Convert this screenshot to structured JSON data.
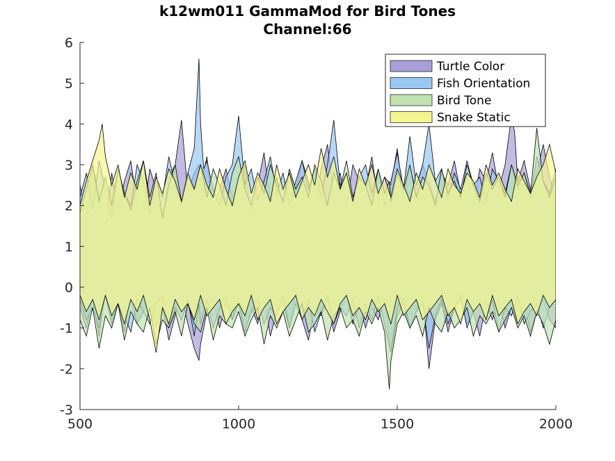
{
  "chart_data": {
    "type": "area",
    "title": "k12wm011 GammaMod for Bird Tones",
    "subtitle": "Channel:66",
    "xlabel": "",
    "ylabel": "",
    "xlim": [
      500,
      2000
    ],
    "ylim": [
      -3,
      6
    ],
    "xticks": [
      "500",
      "1000",
      "1500",
      "2000"
    ],
    "yticks": [
      "-3",
      "-2",
      "-1",
      "0",
      "1",
      "2",
      "3",
      "4",
      "5",
      "6"
    ],
    "grid": false,
    "legend_position": "top-right",
    "series": [
      {
        "name": "Turtle Color",
        "color": "#a89fd8",
        "x": [
          500,
          520,
          540,
          560,
          580,
          600,
          620,
          640,
          660,
          680,
          700,
          720,
          740,
          760,
          780,
          800,
          820,
          840,
          860,
          875,
          880,
          900,
          920,
          940,
          960,
          980,
          1000,
          1020,
          1040,
          1060,
          1080,
          1100,
          1120,
          1140,
          1160,
          1180,
          1200,
          1220,
          1240,
          1260,
          1280,
          1300,
          1320,
          1340,
          1360,
          1380,
          1400,
          1420,
          1440,
          1460,
          1480,
          1500,
          1520,
          1540,
          1560,
          1580,
          1600,
          1620,
          1640,
          1660,
          1680,
          1700,
          1720,
          1740,
          1760,
          1780,
          1800,
          1820,
          1840,
          1860,
          1870,
          1880,
          1900,
          1920,
          1940,
          1960,
          1980,
          2000
        ],
        "upper": [
          2.5,
          1.8,
          3.0,
          2.2,
          1.5,
          2.8,
          1.9,
          2.6,
          3.1,
          2.0,
          1.7,
          2.9,
          2.4,
          1.6,
          2.7,
          3.0,
          4.1,
          2.3,
          2.8,
          3.0,
          2.5,
          3.2,
          1.9,
          2.4,
          2.9,
          2.2,
          2.6,
          3.0,
          1.8,
          2.5,
          3.3,
          2.1,
          2.7,
          2.0,
          2.8,
          2.4,
          3.1,
          2.6,
          1.9,
          2.9,
          3.5,
          2.3,
          2.8,
          2.0,
          3.0,
          2.6,
          2.4,
          3.2,
          2.1,
          2.7,
          2.5,
          3.4,
          2.2,
          2.9,
          2.4,
          3.0,
          2.6,
          2.1,
          2.8,
          2.5,
          3.1,
          2.3,
          2.7,
          2.0,
          2.9,
          2.6,
          3.3,
          2.4,
          3.0,
          4.2,
          3.8,
          2.6,
          3.1,
          2.4,
          2.8,
          3.5,
          2.7,
          2.2
        ],
        "lower": [
          -0.5,
          -1.0,
          -0.3,
          -1.2,
          0.0,
          -0.8,
          -0.4,
          -1.1,
          -0.2,
          -0.9,
          -0.6,
          -0.3,
          -1.0,
          -0.5,
          -1.3,
          -0.7,
          -0.2,
          -0.9,
          -1.5,
          -1.8,
          -1.4,
          -0.6,
          -0.3,
          -1.0,
          -0.4,
          -0.8,
          -0.2,
          -1.1,
          -0.5,
          -0.9,
          -0.3,
          -1.2,
          -0.6,
          -0.4,
          -1.0,
          -0.2,
          -0.8,
          -1.3,
          -0.5,
          -0.7,
          -0.3,
          -1.1,
          -0.6,
          -0.2,
          -0.9,
          -0.4,
          -1.0,
          -0.5,
          -0.8,
          -0.3,
          -1.6,
          -0.7,
          -0.4,
          -1.0,
          -0.6,
          -0.2,
          -2.0,
          -0.8,
          -0.4,
          -1.1,
          -0.5,
          -0.3,
          -0.9,
          -0.6,
          -1.2,
          -0.4,
          -0.8,
          -0.3,
          -1.0,
          -0.5,
          -0.7,
          -0.9,
          -0.4,
          -1.1,
          -0.6,
          -0.3,
          -0.8,
          -1.0
        ]
      },
      {
        "name": "Fish Orientation",
        "color": "#99c9f2",
        "x": [
          500,
          520,
          540,
          560,
          580,
          600,
          620,
          640,
          660,
          680,
          700,
          720,
          740,
          760,
          780,
          800,
          820,
          840,
          860,
          875,
          880,
          890,
          900,
          920,
          940,
          960,
          980,
          1000,
          1020,
          1040,
          1060,
          1080,
          1100,
          1120,
          1140,
          1160,
          1180,
          1200,
          1220,
          1240,
          1260,
          1280,
          1300,
          1320,
          1340,
          1360,
          1380,
          1400,
          1420,
          1440,
          1460,
          1480,
          1500,
          1520,
          1540,
          1560,
          1580,
          1600,
          1620,
          1640,
          1660,
          1680,
          1700,
          1720,
          1740,
          1760,
          1780,
          1800,
          1820,
          1840,
          1860,
          1880,
          1900,
          1920,
          1940,
          1960,
          1980,
          2000
        ],
        "upper": [
          2.2,
          2.8,
          1.9,
          3.1,
          2.4,
          1.7,
          2.9,
          2.3,
          2.0,
          3.0,
          2.6,
          1.8,
          2.7,
          2.2,
          3.2,
          2.5,
          2.0,
          2.8,
          3.4,
          5.6,
          4.0,
          2.9,
          3.1,
          2.4,
          2.0,
          2.7,
          3.0,
          4.2,
          2.5,
          2.9,
          2.1,
          2.6,
          3.2,
          2.3,
          2.8,
          2.0,
          2.6,
          3.1,
          2.4,
          2.9,
          2.2,
          3.0,
          4.1,
          2.5,
          2.8,
          2.1,
          2.7,
          3.0,
          2.3,
          2.9,
          2.0,
          2.6,
          3.3,
          2.4,
          3.7,
          2.5,
          3.0,
          4.0,
          2.6,
          2.9,
          2.2,
          2.8,
          2.4,
          3.1,
          2.5,
          2.7,
          2.1,
          2.9,
          2.6,
          2.3,
          3.0,
          2.4,
          2.8,
          2.2,
          3.2,
          2.6,
          2.3,
          2.9
        ],
        "lower": [
          -0.3,
          -0.8,
          -0.5,
          -1.0,
          -0.2,
          -0.9,
          -0.4,
          -0.7,
          -1.1,
          -0.3,
          -0.6,
          -0.9,
          -0.4,
          -0.2,
          -1.0,
          -0.5,
          -0.8,
          -0.3,
          -1.2,
          -0.4,
          -0.9,
          -0.6,
          -0.3,
          -1.0,
          -0.5,
          -0.2,
          -0.8,
          -0.4,
          -1.1,
          -0.6,
          -0.3,
          -0.9,
          -0.5,
          -0.7,
          -0.2,
          -1.0,
          -0.4,
          -0.8,
          -0.3,
          -1.1,
          -0.6,
          -0.2,
          -0.9,
          -0.5,
          -0.7,
          -0.3,
          -1.0,
          -0.4,
          -0.8,
          -0.2,
          -0.9,
          -1.6,
          -0.5,
          -0.3,
          -1.0,
          -0.6,
          -0.4,
          -1.5,
          -0.7,
          -0.3,
          -0.9,
          -0.5,
          -0.2,
          -1.0,
          -0.6,
          -0.4,
          -0.8,
          -0.3,
          -1.1,
          -0.5,
          -0.7,
          -0.2,
          -0.9,
          -0.6,
          -0.4,
          -1.0,
          -0.5,
          -0.3
        ]
      },
      {
        "name": "Bird Tone",
        "color": "#bfe3b0",
        "x": [
          500,
          520,
          540,
          560,
          580,
          600,
          620,
          640,
          660,
          680,
          700,
          720,
          740,
          760,
          780,
          800,
          820,
          840,
          860,
          880,
          900,
          920,
          940,
          960,
          980,
          1000,
          1020,
          1040,
          1060,
          1080,
          1100,
          1120,
          1140,
          1160,
          1180,
          1200,
          1220,
          1240,
          1260,
          1280,
          1300,
          1320,
          1340,
          1360,
          1380,
          1400,
          1420,
          1440,
          1460,
          1475,
          1480,
          1500,
          1520,
          1540,
          1560,
          1580,
          1600,
          1620,
          1640,
          1660,
          1680,
          1700,
          1720,
          1740,
          1760,
          1780,
          1800,
          1820,
          1840,
          1860,
          1880,
          1900,
          1920,
          1940,
          1960,
          1980,
          2000
        ],
        "upper": [
          1.8,
          2.4,
          3.0,
          2.1,
          2.7,
          2.0,
          2.9,
          2.3,
          1.9,
          2.6,
          3.1,
          2.2,
          2.8,
          1.7,
          2.5,
          3.0,
          2.1,
          2.7,
          2.4,
          3.0,
          2.2,
          2.9,
          2.5,
          2.0,
          2.8,
          3.2,
          2.4,
          2.0,
          2.7,
          2.3,
          3.0,
          2.5,
          2.1,
          2.9,
          2.4,
          2.7,
          2.2,
          3.0,
          2.6,
          2.0,
          2.8,
          2.4,
          3.1,
          2.2,
          2.7,
          2.5,
          2.0,
          2.9,
          2.3,
          2.6,
          2.1,
          2.8,
          2.4,
          3.0,
          2.2,
          2.7,
          2.5,
          2.0,
          2.9,
          2.3,
          2.6,
          2.2,
          3.0,
          2.5,
          2.1,
          2.8,
          2.4,
          2.7,
          2.2,
          3.0,
          2.5,
          2.8,
          2.3,
          3.9,
          2.6,
          2.2,
          2.7
        ],
        "lower": [
          -0.8,
          -1.2,
          -0.5,
          -1.5,
          -0.7,
          -1.0,
          -0.4,
          -1.3,
          -0.6,
          -0.9,
          -1.1,
          -0.5,
          -1.4,
          -0.8,
          -1.0,
          -0.6,
          -1.2,
          -0.4,
          -0.9,
          -1.1,
          -0.5,
          -1.3,
          -0.7,
          -0.9,
          -1.0,
          -0.6,
          -1.2,
          -0.8,
          -0.5,
          -1.4,
          -0.7,
          -1.0,
          -0.6,
          -1.2,
          -0.8,
          -0.4,
          -1.1,
          -0.9,
          -0.6,
          -1.3,
          -0.7,
          -0.5,
          -1.0,
          -0.8,
          -1.2,
          -0.6,
          -0.9,
          -0.5,
          -1.1,
          -2.5,
          -1.8,
          -0.9,
          -0.6,
          -1.0,
          -0.7,
          -1.2,
          -0.5,
          -0.9,
          -1.1,
          -0.6,
          -1.0,
          -0.8,
          -0.5,
          -1.2,
          -0.7,
          -0.9,
          -0.6,
          -1.1,
          -0.8,
          -0.5,
          -1.0,
          -0.7,
          -1.2,
          -0.6,
          -0.9,
          -1.4,
          -0.8
        ]
      },
      {
        "name": "Snake Static",
        "color": "#f5f590",
        "x": [
          500,
          520,
          540,
          560,
          570,
          580,
          600,
          620,
          640,
          660,
          680,
          700,
          720,
          740,
          760,
          780,
          800,
          820,
          840,
          860,
          880,
          900,
          920,
          940,
          960,
          980,
          1000,
          1020,
          1040,
          1060,
          1080,
          1100,
          1120,
          1140,
          1160,
          1180,
          1200,
          1220,
          1240,
          1260,
          1280,
          1300,
          1320,
          1340,
          1360,
          1380,
          1400,
          1420,
          1440,
          1460,
          1480,
          1500,
          1520,
          1540,
          1560,
          1580,
          1600,
          1620,
          1640,
          1660,
          1680,
          1700,
          1720,
          1740,
          1760,
          1780,
          1800,
          1820,
          1840,
          1860,
          1880,
          1900,
          1920,
          1940,
          1960,
          1980,
          2000
        ],
        "upper": [
          2.0,
          2.6,
          3.1,
          3.6,
          4.0,
          3.2,
          2.5,
          3.0,
          2.2,
          2.8,
          2.4,
          3.1,
          2.0,
          2.7,
          2.3,
          2.9,
          2.6,
          2.1,
          2.8,
          2.4,
          3.0,
          2.5,
          2.2,
          2.9,
          2.4,
          2.0,
          2.7,
          3.1,
          2.3,
          2.8,
          2.5,
          2.1,
          3.0,
          2.4,
          2.8,
          2.2,
          2.6,
          3.0,
          2.5,
          3.4,
          2.7,
          3.2,
          2.4,
          2.8,
          2.1,
          2.9,
          2.5,
          3.0,
          2.3,
          2.7,
          2.2,
          2.9,
          2.5,
          2.1,
          2.8,
          2.4,
          3.0,
          2.6,
          2.2,
          2.9,
          2.5,
          2.3,
          2.8,
          2.6,
          2.2,
          3.0,
          2.5,
          2.8,
          2.4,
          2.1,
          2.9,
          2.6,
          2.3,
          2.7,
          3.0,
          3.5,
          2.8
        ],
        "lower": [
          -0.2,
          -0.6,
          -0.3,
          -0.8,
          -0.5,
          -0.2,
          -0.7,
          -0.4,
          -0.9,
          -0.3,
          -0.6,
          -0.2,
          -0.8,
          -1.6,
          -0.5,
          -0.9,
          -0.3,
          -0.6,
          -0.4,
          -0.8,
          -0.2,
          -0.7,
          -0.5,
          -0.3,
          -0.9,
          -0.6,
          -0.4,
          -0.7,
          -0.2,
          -0.8,
          -0.5,
          -0.3,
          -0.9,
          -0.6,
          -0.4,
          -0.2,
          -0.8,
          -0.5,
          -0.7,
          -0.3,
          -0.6,
          -0.9,
          -0.4,
          -0.2,
          -0.7,
          -0.5,
          -0.8,
          -0.3,
          -0.6,
          -0.4,
          -0.9,
          -0.2,
          -0.7,
          -0.5,
          -0.3,
          -0.8,
          -0.6,
          -0.4,
          -0.2,
          -0.7,
          -0.5,
          -0.9,
          -0.3,
          -0.6,
          -0.4,
          -0.8,
          -0.2,
          -0.7,
          -0.5,
          -0.3,
          -0.9,
          -0.6,
          -0.4,
          -0.7,
          -0.2,
          -0.5,
          -0.3
        ]
      }
    ]
  }
}
